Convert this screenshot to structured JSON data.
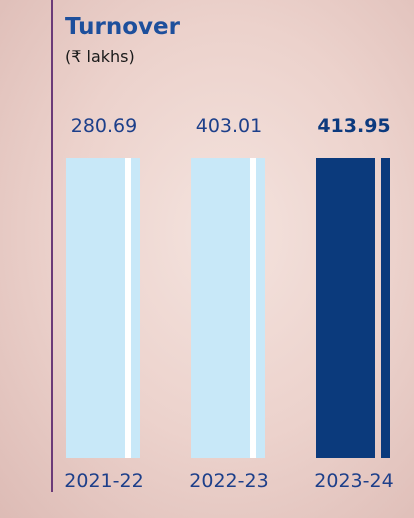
{
  "title": "Turnover",
  "unit": "(₹ lakhs)",
  "items": [
    {
      "year": "2021-22",
      "value": 280.69,
      "color": "#c8e8f8"
    },
    {
      "year": "2022-23",
      "value": 403.01,
      "color": "#c8e8f8"
    },
    {
      "year": "2023-24",
      "value": 413.95,
      "color": "#0b3a7c"
    }
  ]
}
